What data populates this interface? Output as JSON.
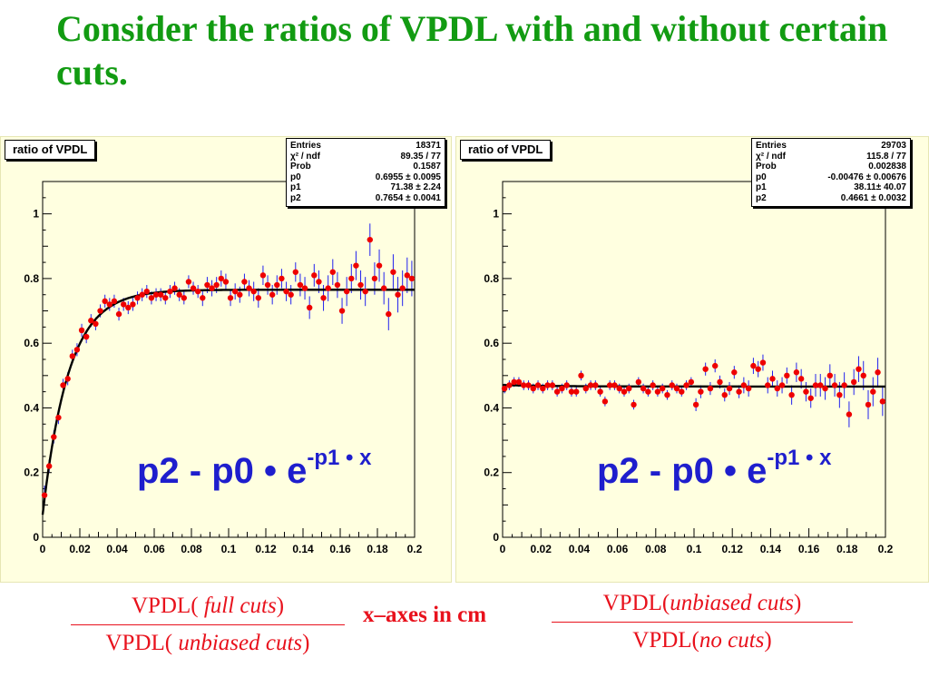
{
  "slide": {
    "title": "Consider the ratios of VPDL with and without certain cuts.",
    "x_axes_note": "x–axes in cm"
  },
  "colors": {
    "title": "#129b12",
    "formula": "#1e1ecd",
    "points": "#ee0000",
    "errors": "#2222ee",
    "fit": "#000000",
    "pad": "#ffffe0",
    "red_text": "#e8111c"
  },
  "ratio_left": {
    "numerator": {
      "prefix": "VPDL( ",
      "cut": "full cuts",
      "suffix": ")"
    },
    "denominator": {
      "prefix": "VPDL( ",
      "cut": "unbiased cuts",
      "suffix": ")"
    }
  },
  "ratio_right": {
    "numerator": {
      "prefix": "VPDL(",
      "cut": "unbiased cuts",
      "suffix": ")"
    },
    "denominator": {
      "prefix": "VPDL(",
      "cut": "no cuts",
      "suffix": ")"
    }
  },
  "chart_data": [
    {
      "type": "scatter",
      "title": "ratio of VPDL",
      "xlim": [
        0,
        0.2
      ],
      "ylim": [
        0,
        1.1
      ],
      "x_ticks": [
        "0",
        "0.02",
        "0.04",
        "0.06",
        "0.08",
        "0.1",
        "0.12",
        "0.14",
        "0.16",
        "0.18",
        "0.2"
      ],
      "y_ticks": [
        "0",
        "0.2",
        "0.4",
        "0.6",
        "0.8",
        "1"
      ],
      "formula": {
        "base": "p2 - p0 • e",
        "exponent": "-p1 • x"
      },
      "stats": [
        {
          "label": "Entries",
          "value": "18371"
        },
        {
          "label": "χ² / ndf",
          "value": "89.35 / 77"
        },
        {
          "label": "Prob",
          "value": "0.1587"
        },
        {
          "label": "p0",
          "value": "0.6955 ± 0.0095"
        },
        {
          "label": "p1",
          "value": "71.38 ± 2.24"
        },
        {
          "label": "p2",
          "value": "0.7654 ± 0.0041"
        }
      ],
      "fit": {
        "p0": 0.6955,
        "p1": 71.38,
        "p2": 0.7654
      },
      "x": [
        0.001,
        0.0035,
        0.006,
        0.0085,
        0.011,
        0.0135,
        0.016,
        0.0185,
        0.021,
        0.0235,
        0.026,
        0.0285,
        0.031,
        0.0335,
        0.036,
        0.0385,
        0.041,
        0.0435,
        0.046,
        0.0485,
        0.051,
        0.0535,
        0.056,
        0.0585,
        0.061,
        0.0635,
        0.066,
        0.0685,
        0.071,
        0.0735,
        0.076,
        0.0785,
        0.081,
        0.0835,
        0.086,
        0.0885,
        0.091,
        0.0935,
        0.096,
        0.0985,
        0.101,
        0.1035,
        0.106,
        0.1085,
        0.111,
        0.1135,
        0.116,
        0.1185,
        0.121,
        0.1235,
        0.126,
        0.1285,
        0.131,
        0.1335,
        0.136,
        0.1385,
        0.141,
        0.1435,
        0.146,
        0.1485,
        0.151,
        0.1535,
        0.156,
        0.1585,
        0.161,
        0.1635,
        0.166,
        0.1685,
        0.171,
        0.1735,
        0.176,
        0.1785,
        0.181,
        0.1835,
        0.186,
        0.1885,
        0.191,
        0.1935,
        0.196,
        0.1985
      ],
      "y": [
        0.13,
        0.22,
        0.31,
        0.37,
        0.47,
        0.49,
        0.56,
        0.58,
        0.64,
        0.62,
        0.67,
        0.66,
        0.7,
        0.73,
        0.72,
        0.73,
        0.69,
        0.72,
        0.71,
        0.72,
        0.74,
        0.75,
        0.76,
        0.74,
        0.75,
        0.75,
        0.74,
        0.76,
        0.77,
        0.75,
        0.74,
        0.79,
        0.77,
        0.76,
        0.74,
        0.78,
        0.77,
        0.78,
        0.8,
        0.79,
        0.74,
        0.76,
        0.75,
        0.79,
        0.77,
        0.76,
        0.74,
        0.81,
        0.78,
        0.75,
        0.78,
        0.8,
        0.76,
        0.75,
        0.82,
        0.78,
        0.77,
        0.71,
        0.81,
        0.79,
        0.74,
        0.77,
        0.82,
        0.78,
        0.7,
        0.76,
        0.8,
        0.84,
        0.78,
        0.76,
        0.92,
        0.8,
        0.84,
        0.77,
        0.69,
        0.82,
        0.75,
        0.77,
        0.81,
        0.8
      ],
      "yerr": [
        0.03,
        0.02,
        0.02,
        0.02,
        0.02,
        0.02,
        0.02,
        0.02,
        0.02,
        0.02,
        0.02,
        0.02,
        0.02,
        0.02,
        0.02,
        0.02,
        0.02,
        0.02,
        0.02,
        0.02,
        0.02,
        0.02,
        0.02,
        0.02,
        0.02,
        0.02,
        0.02,
        0.02,
        0.02,
        0.02,
        0.02,
        0.02,
        0.02,
        0.02,
        0.025,
        0.025,
        0.025,
        0.025,
        0.025,
        0.025,
        0.025,
        0.025,
        0.025,
        0.025,
        0.025,
        0.03,
        0.03,
        0.03,
        0.03,
        0.03,
        0.03,
        0.03,
        0.03,
        0.03,
        0.03,
        0.035,
        0.035,
        0.035,
        0.035,
        0.035,
        0.04,
        0.04,
        0.04,
        0.04,
        0.04,
        0.045,
        0.045,
        0.045,
        0.045,
        0.045,
        0.05,
        0.05,
        0.05,
        0.05,
        0.05,
        0.055,
        0.055,
        0.055,
        0.055,
        0.055
      ]
    },
    {
      "type": "scatter",
      "title": "ratio of VPDL",
      "xlim": [
        0,
        0.2
      ],
      "ylim": [
        0,
        1.1
      ],
      "x_ticks": [
        "0",
        "0.02",
        "0.04",
        "0.06",
        "0.08",
        "0.1",
        "0.12",
        "0.14",
        "0.16",
        "0.18",
        "0.2"
      ],
      "y_ticks": [
        "0",
        "0.2",
        "0.4",
        "0.6",
        "0.8",
        "1"
      ],
      "formula": {
        "base": "p2 - p0 • e",
        "exponent": "-p1 • x"
      },
      "stats": [
        {
          "label": "Entries",
          "value": "29703"
        },
        {
          "label": "χ² / ndf",
          "value": "115.8 / 77"
        },
        {
          "label": "Prob",
          "value": "0.002838"
        },
        {
          "label": "p0",
          "value": "-0.00476 ± 0.00676"
        },
        {
          "label": "p1",
          "value": "38.11± 40.07"
        },
        {
          "label": "p2",
          "value": "0.4661 ± 0.0032"
        }
      ],
      "fit": {
        "p0": -0.00476,
        "p1": 38.11,
        "p2": 0.4661
      },
      "x": [
        0.001,
        0.0035,
        0.006,
        0.0085,
        0.011,
        0.0135,
        0.016,
        0.0185,
        0.021,
        0.0235,
        0.026,
        0.0285,
        0.031,
        0.0335,
        0.036,
        0.0385,
        0.041,
        0.0435,
        0.046,
        0.0485,
        0.051,
        0.0535,
        0.056,
        0.0585,
        0.061,
        0.0635,
        0.066,
        0.0685,
        0.071,
        0.0735,
        0.076,
        0.0785,
        0.081,
        0.0835,
        0.086,
        0.0885,
        0.091,
        0.0935,
        0.096,
        0.0985,
        0.101,
        0.1035,
        0.106,
        0.1085,
        0.111,
        0.1135,
        0.116,
        0.1185,
        0.121,
        0.1235,
        0.126,
        0.1285,
        0.131,
        0.1335,
        0.136,
        0.1385,
        0.141,
        0.1435,
        0.146,
        0.1485,
        0.151,
        0.1535,
        0.156,
        0.1585,
        0.161,
        0.1635,
        0.166,
        0.1685,
        0.171,
        0.1735,
        0.176,
        0.1785,
        0.181,
        0.1835,
        0.186,
        0.1885,
        0.191,
        0.1935,
        0.196,
        0.1985
      ],
      "y": [
        0.46,
        0.47,
        0.48,
        0.48,
        0.47,
        0.47,
        0.46,
        0.47,
        0.46,
        0.47,
        0.47,
        0.45,
        0.46,
        0.47,
        0.45,
        0.45,
        0.5,
        0.46,
        0.47,
        0.47,
        0.45,
        0.42,
        0.47,
        0.47,
        0.46,
        0.45,
        0.46,
        0.41,
        0.48,
        0.46,
        0.45,
        0.47,
        0.45,
        0.46,
        0.44,
        0.47,
        0.46,
        0.45,
        0.47,
        0.48,
        0.41,
        0.45,
        0.52,
        0.46,
        0.53,
        0.48,
        0.44,
        0.46,
        0.51,
        0.45,
        0.47,
        0.46,
        0.53,
        0.52,
        0.54,
        0.47,
        0.49,
        0.46,
        0.47,
        0.5,
        0.44,
        0.51,
        0.49,
        0.45,
        0.43,
        0.47,
        0.47,
        0.46,
        0.5,
        0.47,
        0.44,
        0.47,
        0.38,
        0.48,
        0.52,
        0.5,
        0.41,
        0.45,
        0.51,
        0.42
      ],
      "yerr": [
        0.015,
        0.015,
        0.015,
        0.015,
        0.015,
        0.015,
        0.015,
        0.015,
        0.015,
        0.015,
        0.015,
        0.015,
        0.015,
        0.015,
        0.015,
        0.015,
        0.015,
        0.015,
        0.015,
        0.015,
        0.015,
        0.015,
        0.015,
        0.015,
        0.015,
        0.015,
        0.015,
        0.015,
        0.015,
        0.015,
        0.015,
        0.015,
        0.015,
        0.015,
        0.015,
        0.015,
        0.015,
        0.015,
        0.015,
        0.015,
        0.02,
        0.02,
        0.02,
        0.02,
        0.02,
        0.02,
        0.02,
        0.02,
        0.02,
        0.02,
        0.025,
        0.025,
        0.025,
        0.025,
        0.025,
        0.025,
        0.025,
        0.025,
        0.025,
        0.025,
        0.03,
        0.03,
        0.03,
        0.03,
        0.03,
        0.035,
        0.035,
        0.035,
        0.035,
        0.035,
        0.04,
        0.04,
        0.04,
        0.04,
        0.04,
        0.045,
        0.045,
        0.045,
        0.045,
        0.045
      ]
    }
  ]
}
